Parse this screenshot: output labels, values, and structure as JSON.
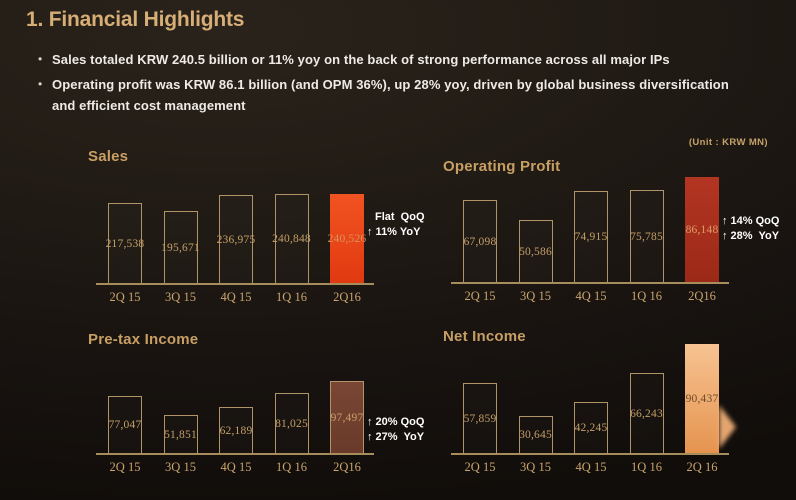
{
  "header": {
    "title": "1. Financial Highlights"
  },
  "bullets": [
    {
      "lines": [
        "Sales totaled KRW 240.5 billion or 11% yoy on the back of strong performance across all major IPs"
      ]
    },
    {
      "lines": [
        "Operating profit was KRW 86.1 billion (and OPM 36%), up 28% yoy, driven by global business diversification",
        "and efficient cost management"
      ]
    }
  ],
  "unit_note": "(Unit : KRW MN)",
  "colors": {
    "title_gold": "#d6ae76",
    "chart_title_gold": "#c89f63",
    "label_tan": "#c49f67",
    "axis_tan": "#a88d5c",
    "annotation_white": "#ffffff",
    "sales_highlight": "#e8431a",
    "operating_profit_highlight": "#a92c1b",
    "pretax_highlight": "#71402f",
    "net_income_highlight": "#f2b57f"
  },
  "chart_data": [
    {
      "type": "bar",
      "title": "Sales",
      "categories": [
        "2Q 15",
        "3Q 15",
        "4Q 15",
        "1Q 16",
        "2Q16"
      ],
      "values": [
        217538,
        195671,
        236975,
        240848,
        240526
      ],
      "unit": "KRW MN",
      "highlight_index": 4,
      "highlight_colors": [
        "#f25322",
        "#e03a10"
      ],
      "highlight_value_color": "#d8935e",
      "annotation": [
        "Flat  QoQ",
        "↑ 11% YoY"
      ]
    },
    {
      "type": "bar",
      "title": "Operating Profit",
      "categories": [
        "2Q 15",
        "3Q 15",
        "4Q 15",
        "1Q 16",
        "2Q16"
      ],
      "values": [
        67098,
        50586,
        74915,
        75785,
        86148
      ],
      "unit": "KRW MN",
      "highlight_index": 4,
      "highlight_colors": [
        "#b23522",
        "#9c2917"
      ],
      "highlight_value_color": "#de9c68",
      "annotation": [
        "↑ 14% QoQ",
        "↑ 28%  YoY"
      ]
    },
    {
      "type": "bar",
      "title": "Pre-tax Income",
      "categories": [
        "2Q 15",
        "3Q 15",
        "4Q 15",
        "1Q 16",
        "2Q16"
      ],
      "values": [
        77047,
        51851,
        62189,
        81025,
        97497
      ],
      "unit": "KRW MN",
      "highlight_index": 4,
      "highlight_colors": [
        "#7a4634",
        "#693a2a"
      ],
      "highlight_border": "#b5936a",
      "highlight_value_color": "#c79e6a",
      "annotation": [
        "↑ 20% QoQ",
        "↑ 27%  YoY"
      ]
    },
    {
      "type": "bar",
      "title": "Net Income",
      "categories": [
        "2Q 15",
        "3Q 15",
        "4Q 15",
        "1Q 16",
        "2Q 16"
      ],
      "values": [
        57859,
        30645,
        42245,
        66243,
        90437
      ],
      "unit": "KRW MN",
      "highlight_index": 4,
      "highlight_colors": [
        "#f7c392",
        "#e5944f"
      ],
      "highlight_value_color": "#6e4a2a",
      "annotation": [],
      "arrow_marker": true
    }
  ]
}
